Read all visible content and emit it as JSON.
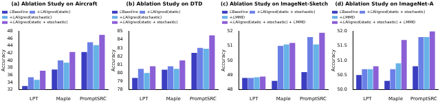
{
  "chart_data": [
    {
      "type": "bar",
      "title": "(a) Ablation Study on Aircraft",
      "y_label": "Accuracy",
      "categories": [
        "LPT",
        "Maple",
        "PromptSRC"
      ],
      "series": [
        {
          "name": "ℒBaseline",
          "color": "#3b3ec0",
          "values": [
            33.0,
            37.5,
            42.3
          ]
        },
        {
          "name": "+ℒAligned(static)",
          "color": "#6b80e6",
          "values": [
            35.4,
            40.0,
            45.0
          ]
        },
        {
          "name": "+ℒAligned(stochastic)",
          "color": "#67b2e6",
          "values": [
            34.7,
            39.4,
            44.2
          ]
        },
        {
          "name": "+ℒAligned(static + stochastic)",
          "color": "#8b5fd6",
          "values": [
            37.2,
            42.3,
            47.0
          ]
        }
      ],
      "ylim": [
        32,
        48
      ],
      "yticks": [
        32,
        34,
        36,
        38,
        40,
        42,
        44,
        46,
        48
      ],
      "grid": false,
      "legend": "top"
    },
    {
      "type": "bar",
      "title": "(b) Ablation Study on DTD",
      "y_label": "Accuracy",
      "categories": [
        "LPT",
        "Maple",
        "PromptSRC"
      ],
      "series": [
        {
          "name": "ℒBaseline",
          "color": "#3b3ec0",
          "values": [
            79.4,
            80.4,
            82.4
          ]
        },
        {
          "name": "+ℒAligned(static)",
          "color": "#6b80e6",
          "values": [
            80.5,
            80.8,
            83.0
          ]
        },
        {
          "name": "+ℒAligned(stochastic)",
          "color": "#67b2e6",
          "values": [
            80.0,
            80.5,
            82.9
          ]
        },
        {
          "name": "+ℒAligned(static + stochastic)",
          "color": "#8b5fd6",
          "values": [
            80.8,
            81.5,
            84.5
          ]
        }
      ],
      "ylim": [
        78,
        85
      ],
      "yticks": [
        78,
        79,
        80,
        81,
        82,
        83,
        84,
        85
      ],
      "grid": false,
      "legend": "top"
    },
    {
      "type": "bar",
      "title": "(c) Ablation Study on ImageNet-Sketch",
      "y_label": "Accuracy",
      "categories": [
        "LPT",
        "Maple",
        "PromptSRC"
      ],
      "series": [
        {
          "name": "ℒBaseline",
          "color": "#3b3ec0",
          "values": [
            48.8,
            48.6,
            49.2
          ]
        },
        {
          "name": "+ℒAligned(static + stochastic)",
          "color": "#6b80e6",
          "values": [
            48.8,
            51.0,
            51.6
          ]
        },
        {
          "name": "+ℒMMD",
          "color": "#67b2e6",
          "values": [
            48.85,
            51.1,
            51.1
          ]
        },
        {
          "name": "+ℒAligned(static + stochastic) + ℒMMD",
          "color": "#8b5fd6",
          "values": [
            48.9,
            51.2,
            51.9
          ]
        }
      ],
      "ylim": [
        48,
        52
      ],
      "yticks": [
        48,
        49,
        50,
        51,
        52
      ],
      "grid": false,
      "legend": "top"
    },
    {
      "type": "bar",
      "title": "(d) Ablation Study on ImageNet-A",
      "y_label": "Accuracy",
      "categories": [
        "LPT",
        "Maple",
        "PromptSRC"
      ],
      "series": [
        {
          "name": "ℒBaseline",
          "color": "#3b3ec0",
          "values": [
            50.5,
            50.3,
            50.8
          ]
        },
        {
          "name": "+ℒAligned(static + stochastic)",
          "color": "#6b80e6",
          "values": [
            50.7,
            50.7,
            51.8
          ]
        },
        {
          "name": "+ℒMMD",
          "color": "#67b2e6",
          "values": [
            50.7,
            50.9,
            51.8
          ]
        },
        {
          "name": "+ℒAligned(static + stochastic) + ℒMMD",
          "color": "#8b5fd6",
          "values": [
            50.8,
            51.7,
            52.0
          ]
        }
      ],
      "ylim": [
        50,
        52
      ],
      "yticks": [
        {
          "value": 50,
          "label": "50.0"
        },
        {
          "value": 50.5,
          "label": "50.5"
        },
        {
          "value": 51,
          "label": "51.0"
        },
        {
          "value": 51.5,
          "label": "51.5"
        },
        {
          "value": 52,
          "label": "52.0"
        }
      ],
      "grid": false,
      "legend": "top"
    }
  ]
}
